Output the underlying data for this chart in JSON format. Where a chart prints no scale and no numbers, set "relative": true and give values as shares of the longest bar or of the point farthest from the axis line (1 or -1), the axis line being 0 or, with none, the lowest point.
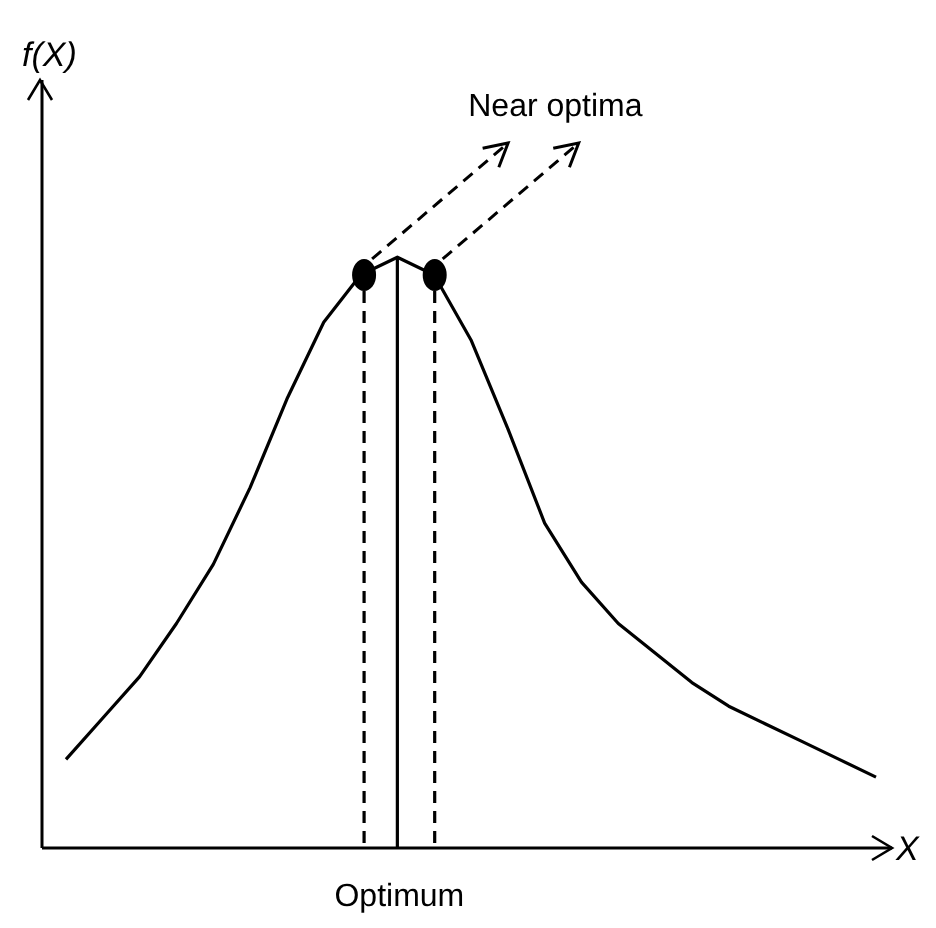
{
  "chart_data": {
    "type": "line",
    "relative": true,
    "xlabel": "X",
    "annotations": [
      "f(X)",
      "Near optima"
    ],
    "grid": false,
    "line_style": "solid",
    "categories": [
      null,
      null,
      null,
      null,
      null,
      null,
      null,
      null,
      null,
      null,
      null,
      null,
      null,
      null,
      null,
      null,
      null,
      null,
      null,
      null,
      null,
      null,
      null
    ],
    "series": [
      {
        "color": "#000000",
        "marker": "none",
        "values": [
          0.15,
          0.22,
          0.29,
          0.38,
          0.48,
          0.61,
          0.76,
          0.89,
          0.97,
          1,
          0.97,
          0.86,
          0.71,
          0.55,
          0.45,
          0.38,
          0.33,
          0.28,
          0.24,
          0.21,
          0.18,
          0.15,
          0.12
        ]
      }
    ],
    "ref_lines": [
      {
        "axis": "x",
        "label": "Optimum",
        "line_style": "solid",
        "color": "#000000"
      }
    ]
  }
}
